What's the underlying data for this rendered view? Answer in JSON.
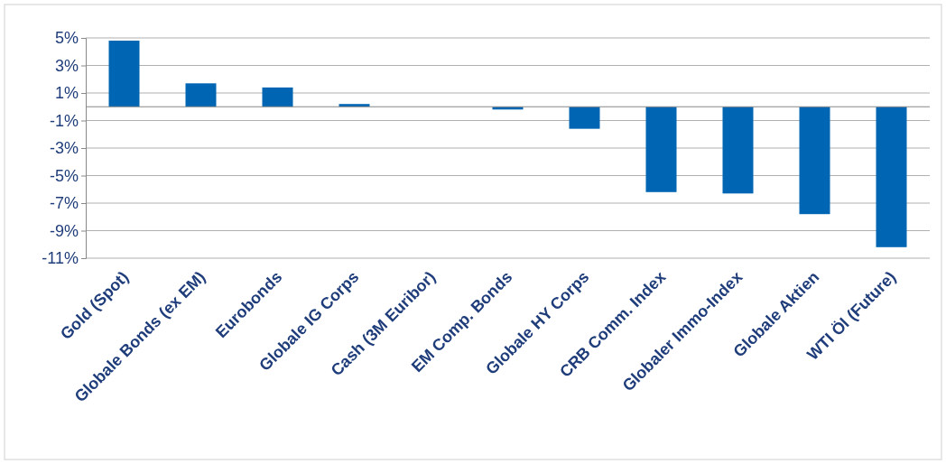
{
  "chart_data": {
    "type": "bar",
    "categories": [
      "Gold (Spot)",
      "Globale Bonds (ex EM)",
      "Eurobonds",
      "Globale IG Corps",
      "Cash (3M Euribor)",
      "EM Comp. Bonds",
      "Globale HY Corps",
      "CRB Comm. Index",
      "Globaler Immo-Index",
      "Globale Aktien",
      "WTI Öl (Future)"
    ],
    "values": [
      4.8,
      1.7,
      1.4,
      0.2,
      0,
      -0.2,
      -1.6,
      -6.2,
      -6.3,
      -7.8,
      -10.2
    ],
    "color": "#0066b3",
    "ylim": [
      -11,
      5
    ],
    "yticks": [
      {
        "value": 5,
        "label": "5%"
      },
      {
        "value": 3,
        "label": "3%"
      },
      {
        "value": 1,
        "label": "1%"
      },
      {
        "value": -1,
        "label": "-1%"
      },
      {
        "value": -3,
        "label": "-3%"
      },
      {
        "value": -5,
        "label": "-5%"
      },
      {
        "value": -7,
        "label": "-7%"
      },
      {
        "value": -9,
        "label": "-9%"
      },
      {
        "value": -11,
        "label": "-11%"
      }
    ],
    "grid": "y"
  }
}
